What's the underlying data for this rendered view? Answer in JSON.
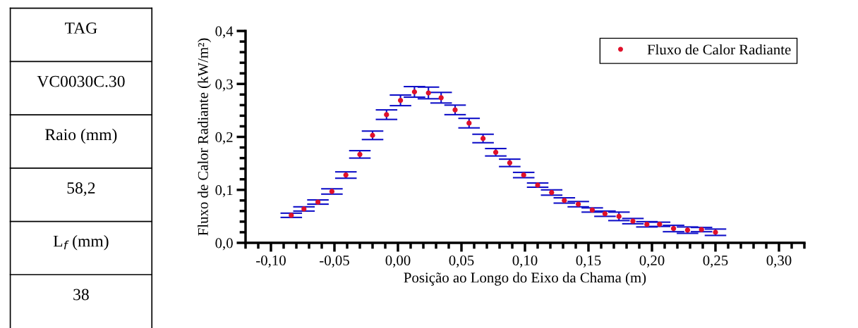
{
  "chart_data": [
    {
      "type": "other",
      "annotations": [
        "TAG",
        "VC0030C.30",
        "Raio (mm)",
        "58,2",
        "L$_{f}$ (mm)",
        "38"
      ]
    },
    {
      "type": "scatter",
      "xlabel": "Posição ao Longo do Eixo da Chama (m)",
      "ylabel": "Fluxo de Calor Radiante (kW/m²)",
      "x": [
        -0.084,
        -0.074,
        -0.063,
        -0.052,
        -0.041,
        -0.03,
        -0.02,
        -0.009,
        0.002,
        0.013,
        0.024,
        0.034,
        0.045,
        0.056,
        0.067,
        0.077,
        0.088,
        0.099,
        0.11,
        0.121,
        0.131,
        0.142,
        0.153,
        0.163,
        0.174,
        0.185,
        0.196,
        0.206,
        0.217,
        0.228,
        0.239,
        0.25
      ],
      "series": [
        {
          "name": "Fluxo de Calor Radiante",
          "color": "#e0102a",
          "values": [
            0.052,
            0.064,
            0.077,
            0.097,
            0.128,
            0.167,
            0.203,
            0.242,
            0.269,
            0.285,
            0.283,
            0.274,
            0.251,
            0.226,
            0.197,
            0.171,
            0.151,
            0.128,
            0.109,
            0.095,
            0.08,
            0.073,
            0.062,
            0.055,
            0.05,
            0.041,
            0.035,
            0.035,
            0.027,
            0.024,
            0.025,
            0.02
          ],
          "errors": [
            0.004,
            0.004,
            0.004,
            0.005,
            0.006,
            0.007,
            0.008,
            0.009,
            0.01,
            0.01,
            0.011,
            0.01,
            0.009,
            0.009,
            0.008,
            0.007,
            0.007,
            0.005,
            0.004,
            0.005,
            0.005,
            0.005,
            0.004,
            0.005,
            0.008,
            0.005,
            0.005,
            0.004,
            0.006,
            0.006,
            0.004,
            0.006
          ]
        }
      ],
      "marker": "circle",
      "legend": "top right",
      "grid": false,
      "xlim": [
        -0.12,
        0.32
      ],
      "xticks": [
        {
          "value": -0.1,
          "label": "-0,10"
        },
        {
          "value": -0.05,
          "label": "-0,05"
        },
        {
          "value": 0.0,
          "label": "0,00"
        },
        {
          "value": 0.05,
          "label": "0,05"
        },
        {
          "value": 0.1,
          "label": "0,10"
        },
        {
          "value": 0.15,
          "label": "0,15"
        },
        {
          "value": 0.2,
          "label": "0,20"
        },
        {
          "value": 0.25,
          "label": "0,25"
        },
        {
          "value": 0.3,
          "label": "0,30"
        }
      ],
      "ylim": [
        0,
        0.4
      ],
      "yticks": [
        {
          "value": 0.0,
          "label": "0,0"
        },
        {
          "value": 0.1,
          "label": "0,1"
        },
        {
          "value": 0.2,
          "label": "0,2"
        },
        {
          "value": 0.3,
          "label": "0,3"
        },
        {
          "value": 0.4,
          "label": "0,4"
        }
      ]
    }
  ]
}
